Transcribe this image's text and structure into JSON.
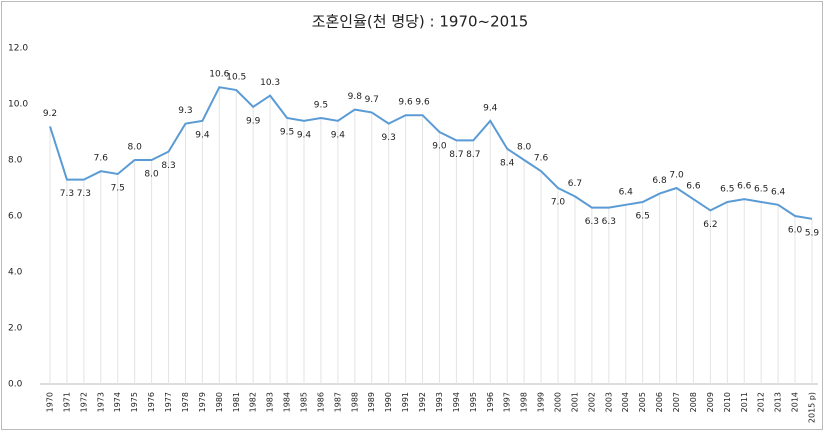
{
  "chart_data": {
    "type": "line",
    "title": "조혼인율(천 명당) : 1970~2015",
    "categories": [
      "1970",
      "1971",
      "1972",
      "1973",
      "1974",
      "1975",
      "1976",
      "1977",
      "1978",
      "1979",
      "1980",
      "1981",
      "1982",
      "1983",
      "1984",
      "1985",
      "1986",
      "1987",
      "1988",
      "1989",
      "1990",
      "1991",
      "1992",
      "1993",
      "1994",
      "1995",
      "1996",
      "1997",
      "1998",
      "1999",
      "2000",
      "2001",
      "2002",
      "2003",
      "2004",
      "2005",
      "2006",
      "2007",
      "2008",
      "2009",
      "2010",
      "2011",
      "2012",
      "2013",
      "2014",
      "2015 p)"
    ],
    "series": [
      {
        "name": "조혼인율",
        "color": "#5b9bd5",
        "values": [
          9.2,
          7.3,
          7.3,
          7.6,
          7.5,
          8.0,
          8.0,
          8.3,
          9.3,
          9.4,
          10.6,
          10.5,
          9.9,
          10.3,
          9.5,
          9.4,
          9.5,
          9.4,
          9.8,
          9.7,
          9.3,
          9.6,
          9.6,
          9.0,
          8.7,
          8.7,
          9.4,
          8.4,
          8.0,
          7.6,
          7.0,
          6.7,
          6.3,
          6.3,
          6.4,
          6.5,
          6.8,
          7.0,
          6.6,
          6.2,
          6.5,
          6.6,
          6.5,
          6.4,
          6.0,
          5.9
        ],
        "value_labels": [
          "9.2",
          "7.3",
          "7.3",
          "7.6",
          "7.5",
          "8.0",
          "8.0",
          "8.3",
          "9.3",
          "9.4",
          "10.6",
          "10.5",
          "9.9",
          "10.3",
          "9.5",
          "9.4",
          "9.5",
          "9.4",
          "9.8",
          "9.7",
          "9.3",
          "9.6",
          "9.6",
          "9.0",
          "8.7",
          "8.7",
          "9.4",
          "8.4",
          "8.0",
          "7.6",
          "7.0",
          "6.7",
          "6.3",
          "6.3",
          "6.4",
          "6.5",
          "6.8",
          "7.0",
          "6.6",
          "6.2",
          "6.5",
          "6.6",
          "6.5",
          "6.4",
          "6.0",
          "5.9"
        ]
      }
    ],
    "ylim": [
      0,
      12
    ],
    "yticks": [
      {
        "value": 0,
        "label": "0.0"
      },
      {
        "value": 2,
        "label": "2.0"
      },
      {
        "value": 4,
        "label": "4.0"
      },
      {
        "value": 6,
        "label": "6.0"
      },
      {
        "value": 8,
        "label": "8.0"
      },
      {
        "value": 10,
        "label": "10.0"
      },
      {
        "value": 12,
        "label": "12.0"
      }
    ],
    "grid": false
  }
}
